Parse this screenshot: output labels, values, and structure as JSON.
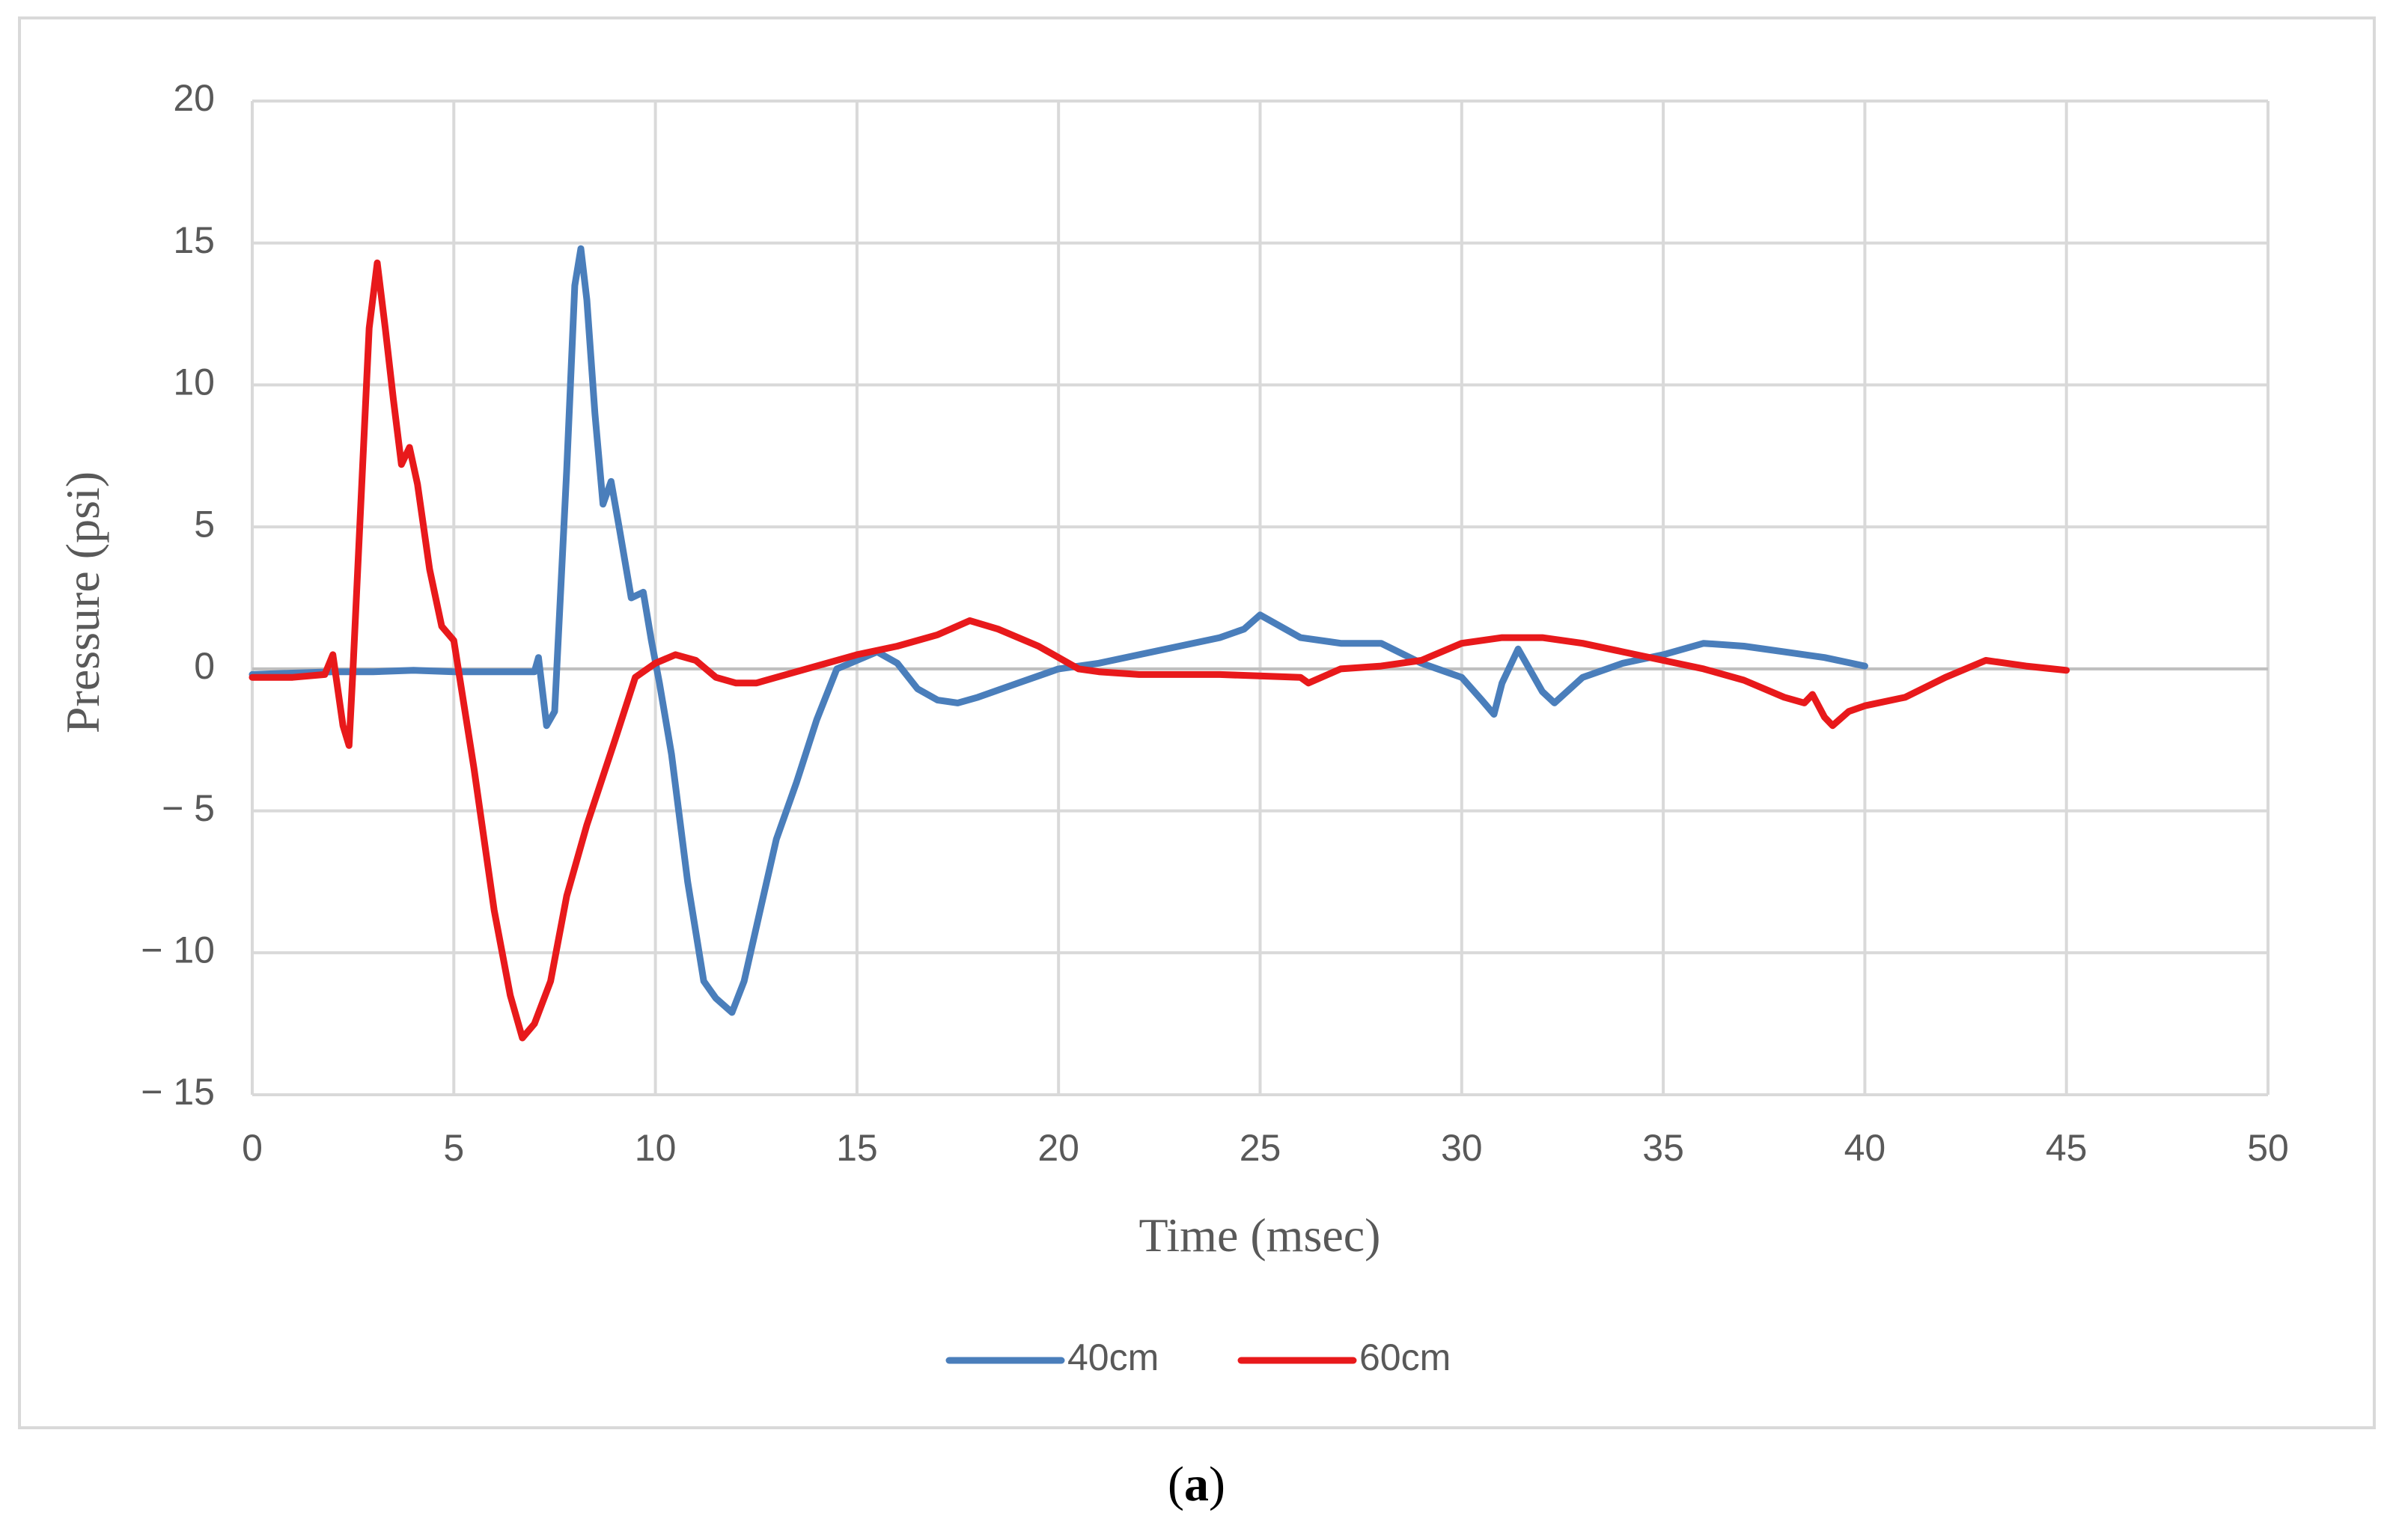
{
  "caption": {
    "open": "(",
    "label": "a",
    "close": ")"
  },
  "chart_data": {
    "type": "line",
    "title": "",
    "xlabel": "Time (msec)",
    "ylabel": "Pressure (psi)",
    "xlim": [
      0,
      50
    ],
    "ylim": [
      -15,
      20
    ],
    "xticks": [
      0,
      5,
      10,
      15,
      20,
      25,
      30,
      35,
      40,
      45,
      50
    ],
    "yticks": [
      20,
      15,
      10,
      5,
      0,
      -5,
      -10,
      -15
    ],
    "ytick_labels": [
      "20",
      "15",
      "10",
      "5",
      "0",
      "− 5",
      "− 10",
      "− 15"
    ],
    "grid": true,
    "legend_position": "bottom",
    "series": [
      {
        "name": "40cm",
        "color": "#4a7ebb",
        "x": [
          0,
          1,
          2,
          3,
          4,
          5,
          6,
          7,
          7.1,
          7.3,
          7.5,
          7.8,
          8.0,
          8.15,
          8.3,
          8.5,
          8.7,
          8.9,
          9.1,
          9.4,
          9.7,
          9.9,
          10.1,
          10.4,
          10.8,
          11.2,
          11.5,
          11.9,
          12.2,
          12.6,
          13.0,
          13.5,
          14.0,
          14.5,
          15.0,
          15.5,
          16.0,
          16.5,
          17.0,
          17.5,
          18.0,
          19.0,
          20.0,
          21.0,
          22.0,
          23.0,
          24.0,
          24.6,
          25.0,
          26.0,
          27.0,
          28.0,
          29.0,
          30.0,
          30.5,
          30.8,
          31.0,
          31.4,
          32.0,
          32.3,
          33.0,
          34.0,
          35.0,
          36.0,
          37.0,
          38.0,
          39.0,
          40.0
        ],
        "values": [
          -0.2,
          -0.15,
          -0.1,
          -0.1,
          -0.05,
          -0.1,
          -0.1,
          -0.1,
          0.4,
          -2.0,
          -1.5,
          7.0,
          13.5,
          14.8,
          13.0,
          9.0,
          5.8,
          6.6,
          5.0,
          2.5,
          2.7,
          1.0,
          -0.5,
          -3.0,
          -7.5,
          -11.0,
          -11.6,
          -12.1,
          -11.0,
          -8.5,
          -6.0,
          -4.0,
          -1.8,
          0.0,
          0.3,
          0.6,
          0.2,
          -0.7,
          -1.1,
          -1.2,
          -1.0,
          -0.5,
          0.0,
          0.2,
          0.5,
          0.8,
          1.1,
          1.4,
          1.9,
          1.1,
          0.9,
          0.9,
          0.2,
          -0.3,
          -1.1,
          -1.6,
          -0.5,
          0.7,
          -0.8,
          -1.2,
          -0.3,
          0.2,
          0.5,
          0.9,
          0.8,
          0.6,
          0.4,
          0.1
        ]
      },
      {
        "name": "60cm",
        "color": "#e8191b",
        "x": [
          0,
          1,
          1.8,
          2.0,
          2.1,
          2.25,
          2.4,
          2.5,
          2.7,
          2.9,
          3.1,
          3.3,
          3.5,
          3.7,
          3.9,
          4.1,
          4.4,
          4.7,
          5.0,
          5.5,
          6.0,
          6.4,
          6.7,
          7.0,
          7.4,
          7.8,
          8.3,
          9.0,
          9.5,
          10.0,
          10.5,
          11.0,
          11.5,
          12.0,
          12.5,
          13.0,
          14.0,
          15.0,
          16.0,
          17.0,
          17.8,
          18.5,
          19.5,
          20.5,
          21.0,
          22.0,
          24.0,
          26.0,
          26.2,
          27.0,
          28.0,
          29.0,
          30.0,
          31.0,
          32.0,
          33.0,
          34.0,
          35.0,
          36.0,
          37.0,
          38.0,
          38.5,
          38.7,
          39.0,
          39.2,
          39.6,
          40.0,
          41.0,
          42.0,
          43.0,
          44.0,
          45.0
        ],
        "values": [
          -0.3,
          -0.3,
          -0.2,
          0.5,
          -0.5,
          -2.0,
          -2.7,
          0.0,
          6.0,
          12.0,
          14.3,
          12.0,
          9.5,
          7.2,
          7.8,
          6.5,
          3.5,
          1.5,
          1.0,
          -3.5,
          -8.5,
          -11.5,
          -13.0,
          -12.5,
          -11.0,
          -8.0,
          -5.5,
          -2.5,
          -0.3,
          0.2,
          0.5,
          0.3,
          -0.3,
          -0.5,
          -0.5,
          -0.3,
          0.1,
          0.5,
          0.8,
          1.2,
          1.7,
          1.4,
          0.8,
          0.0,
          -0.1,
          -0.2,
          -0.2,
          -0.3,
          -0.5,
          0.0,
          0.1,
          0.3,
          0.9,
          1.1,
          1.1,
          0.9,
          0.6,
          0.3,
          0.0,
          -0.4,
          -1.0,
          -1.2,
          -0.9,
          -1.7,
          -2.0,
          -1.5,
          -1.3,
          -1.0,
          -0.3,
          0.3,
          0.1,
          -0.05
        ]
      }
    ]
  }
}
